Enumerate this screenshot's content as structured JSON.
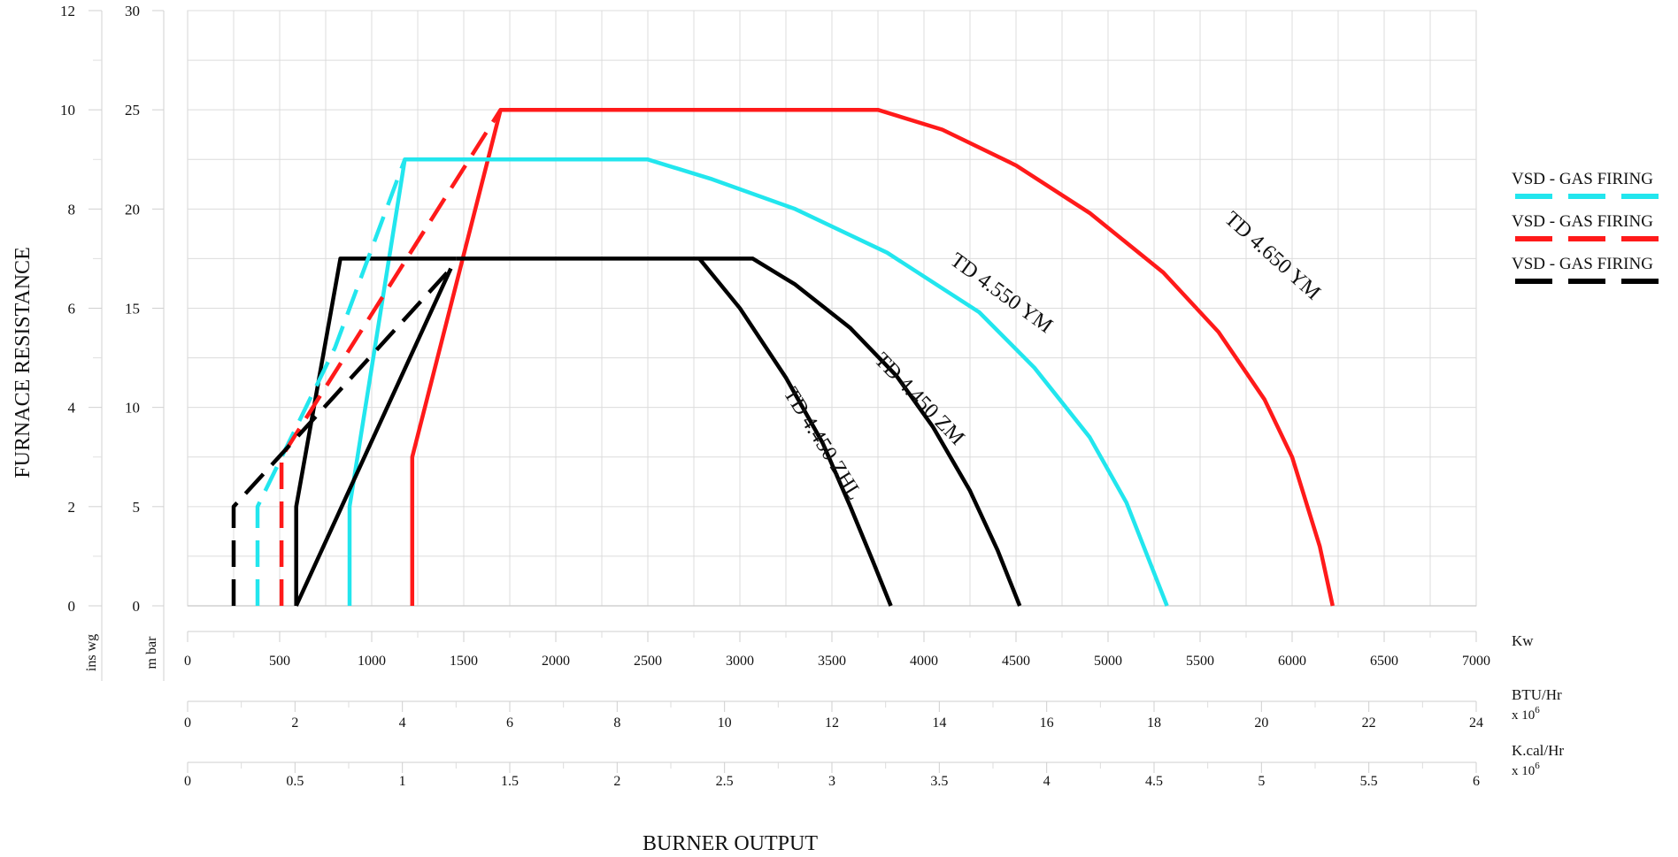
{
  "chart_data": {
    "type": "line",
    "title": "",
    "xlabel": "BURNER OUTPUT",
    "ylabel": "FURNACE RESISTANCE",
    "grid": true,
    "legend_position": "right",
    "xlim": [
      0,
      7000
    ],
    "ylim": [
      0,
      30
    ],
    "y_axes": [
      {
        "unit": "ins wg",
        "ticks": [
          "0",
          "2",
          "4",
          "6",
          "8",
          "10",
          "12"
        ]
      },
      {
        "unit": "m bar",
        "ticks": [
          "0",
          "5",
          "10",
          "15",
          "20",
          "25",
          "30"
        ]
      }
    ],
    "x_axes": [
      {
        "unit": "Kw",
        "ticks": [
          "0",
          "500",
          "1000",
          "1500",
          "2000",
          "2500",
          "3000",
          "3500",
          "4000",
          "4500",
          "5000",
          "5500",
          "6000",
          "6500",
          "7000"
        ]
      },
      {
        "unit": "BTU/Hr",
        "multiplier": "x 10",
        "exponent": "6",
        "ticks": [
          "0",
          "2",
          "4",
          "6",
          "8",
          "10",
          "12",
          "14",
          "16",
          "18",
          "20",
          "22",
          "24"
        ]
      },
      {
        "unit": "K.cal/Hr",
        "multiplier": "x 10",
        "exponent": "6",
        "ticks": [
          "0",
          "0.5",
          "1",
          "1.5",
          "2",
          "2.5",
          "3",
          "3.5",
          "4",
          "4.5",
          "5",
          "5.5",
          "6"
        ]
      }
    ],
    "legend": [
      {
        "label": "VSD - GAS FIRING",
        "color": "#22e6ee"
      },
      {
        "label": "VSD - GAS FIRING",
        "color": "#ff1a1a"
      },
      {
        "label": "VSD - GAS FIRING",
        "color": "#000000"
      }
    ],
    "series": [
      {
        "name": "TD 4.650 YM",
        "color": "#ff1a1a",
        "style": "solid",
        "points": [
          [
            1220,
            0
          ],
          [
            1220,
            7.5
          ],
          [
            1700,
            25
          ],
          [
            3750,
            25
          ],
          [
            4100,
            24
          ],
          [
            4500,
            22.2
          ],
          [
            4900,
            19.8
          ],
          [
            5300,
            16.8
          ],
          [
            5600,
            13.8
          ],
          [
            5850,
            10.4
          ],
          [
            6000,
            7.5
          ],
          [
            6150,
            3
          ],
          [
            6220,
            0
          ]
        ]
      },
      {
        "name": "TD 4.550 YM",
        "color": "#22e6ee",
        "style": "solid",
        "points": [
          [
            880,
            0
          ],
          [
            880,
            5
          ],
          [
            1180,
            22.5
          ],
          [
            2500,
            22.5
          ],
          [
            2850,
            21.5
          ],
          [
            3300,
            20
          ],
          [
            3800,
            17.8
          ],
          [
            4300,
            14.8
          ],
          [
            4600,
            12
          ],
          [
            4900,
            8.5
          ],
          [
            5100,
            5.2
          ],
          [
            5320,
            0
          ]
        ]
      },
      {
        "name": "TD 4.450 ZM",
        "color": "#000000",
        "style": "solid",
        "points": [
          [
            1460,
            17.5
          ],
          [
            3070,
            17.5
          ],
          [
            3300,
            16.2
          ],
          [
            3600,
            14
          ],
          [
            3850,
            11.6
          ],
          [
            4050,
            9
          ],
          [
            4250,
            5.8
          ],
          [
            4400,
            2.8
          ],
          [
            4520,
            0
          ]
        ]
      },
      {
        "name": "TD 4.450 ZHL",
        "color": "#000000",
        "style": "solid",
        "points": [
          [
            2780,
            17.5
          ],
          [
            3000,
            15
          ],
          [
            3250,
            11.5
          ],
          [
            3450,
            8.2
          ],
          [
            3600,
            5
          ],
          [
            3720,
            2.3
          ],
          [
            3820,
            0
          ]
        ]
      },
      {
        "name": "",
        "color": "#000000",
        "style": "solid",
        "points": [
          [
            590,
            0
          ],
          [
            590,
            5
          ],
          [
            830,
            17.5
          ],
          [
            1460,
            17.5
          ]
        ]
      },
      {
        "name": "",
        "color": "#000000",
        "style": "solid",
        "points": [
          [
            590,
            0
          ],
          [
            1430,
            17
          ]
        ]
      },
      {
        "name": "",
        "color": "#22e6ee",
        "style": "dashed",
        "points": [
          [
            380,
            0
          ],
          [
            380,
            5
          ],
          [
            800,
            13
          ],
          [
            1180,
            22.5
          ]
        ]
      },
      {
        "name": "",
        "color": "#ff1a1a",
        "style": "dashed",
        "points": [
          [
            510,
            0
          ],
          [
            510,
            7.5
          ],
          [
            1700,
            25
          ]
        ]
      },
      {
        "name": "",
        "color": "#000000",
        "style": "dashed",
        "points": [
          [
            250,
            0
          ],
          [
            250,
            5
          ],
          [
            1430,
            17
          ]
        ]
      }
    ],
    "annotations": [
      {
        "text": "TD  4.650 YM",
        "x": 5870,
        "y": 17.4,
        "angle": 42
      },
      {
        "text": "TD  4.550 YM",
        "x": 4400,
        "y": 15.5,
        "angle": 36
      },
      {
        "text": "TD  4.450 ZM",
        "x": 3950,
        "y": 10.2,
        "angle": 46
      },
      {
        "text": "TD  4.450 ZHL",
        "x": 3420,
        "y": 8,
        "angle": 58
      }
    ]
  }
}
